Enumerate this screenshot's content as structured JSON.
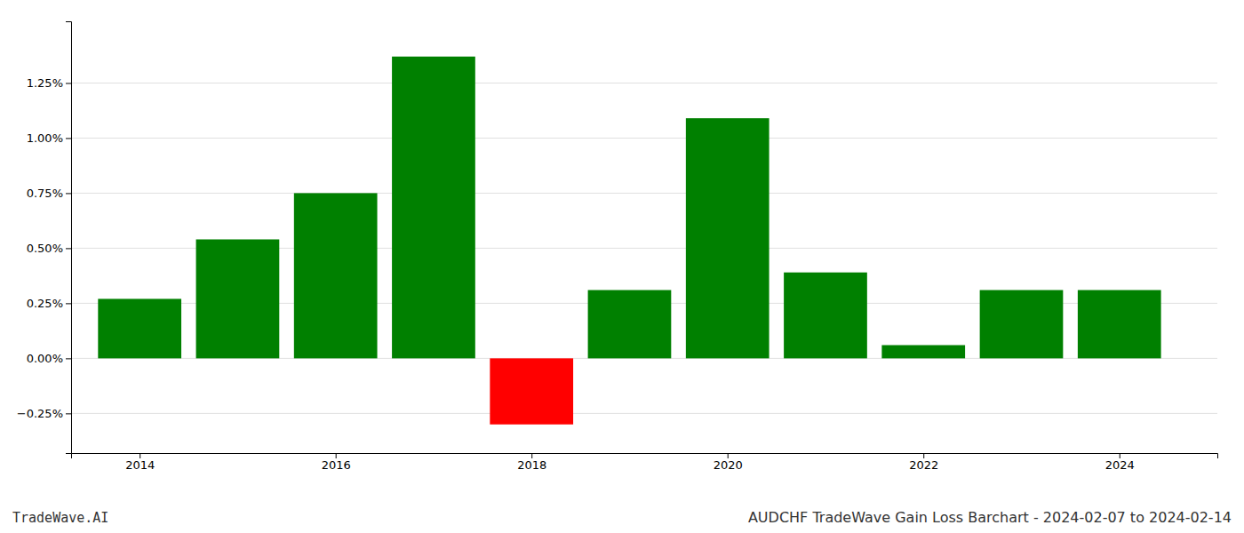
{
  "chart_data": {
    "type": "bar",
    "title": "AUDCHF TradeWave Gain Loss Barchart - 2024-02-07 to 2024-02-14",
    "annotations": [
      "TradeWave.AI"
    ],
    "x": [
      2014,
      2015,
      2016,
      2017,
      2018,
      2019,
      2020,
      2021,
      2022,
      2023,
      2024
    ],
    "values": [
      0.0027,
      0.0054,
      0.0075,
      0.0137,
      -0.003,
      0.0031,
      0.0109,
      0.0039,
      0.0006,
      0.0031,
      0.0031
    ],
    "colors": [
      "#008000",
      "#008000",
      "#008000",
      "#008000",
      "#ff0000",
      "#008000",
      "#008000",
      "#008000",
      "#008000",
      "#008000",
      "#008000"
    ],
    "xlim": [
      2013.3,
      2025.0
    ],
    "xticks": [
      2014,
      2016,
      2018,
      2020,
      2022,
      2024
    ],
    "ylim": [
      -0.0043,
      0.0153
    ],
    "yticks": [
      {
        "value": -0.0025,
        "label": "−0.25%"
      },
      {
        "value": 0.0,
        "label": "0.00%"
      },
      {
        "value": 0.0025,
        "label": "0.25%"
      },
      {
        "value": 0.005,
        "label": "0.50%"
      },
      {
        "value": 0.0075,
        "label": "0.75%"
      },
      {
        "value": 0.01,
        "label": "1.00%"
      },
      {
        "value": 0.0125,
        "label": "1.25%"
      }
    ],
    "grid": true
  }
}
